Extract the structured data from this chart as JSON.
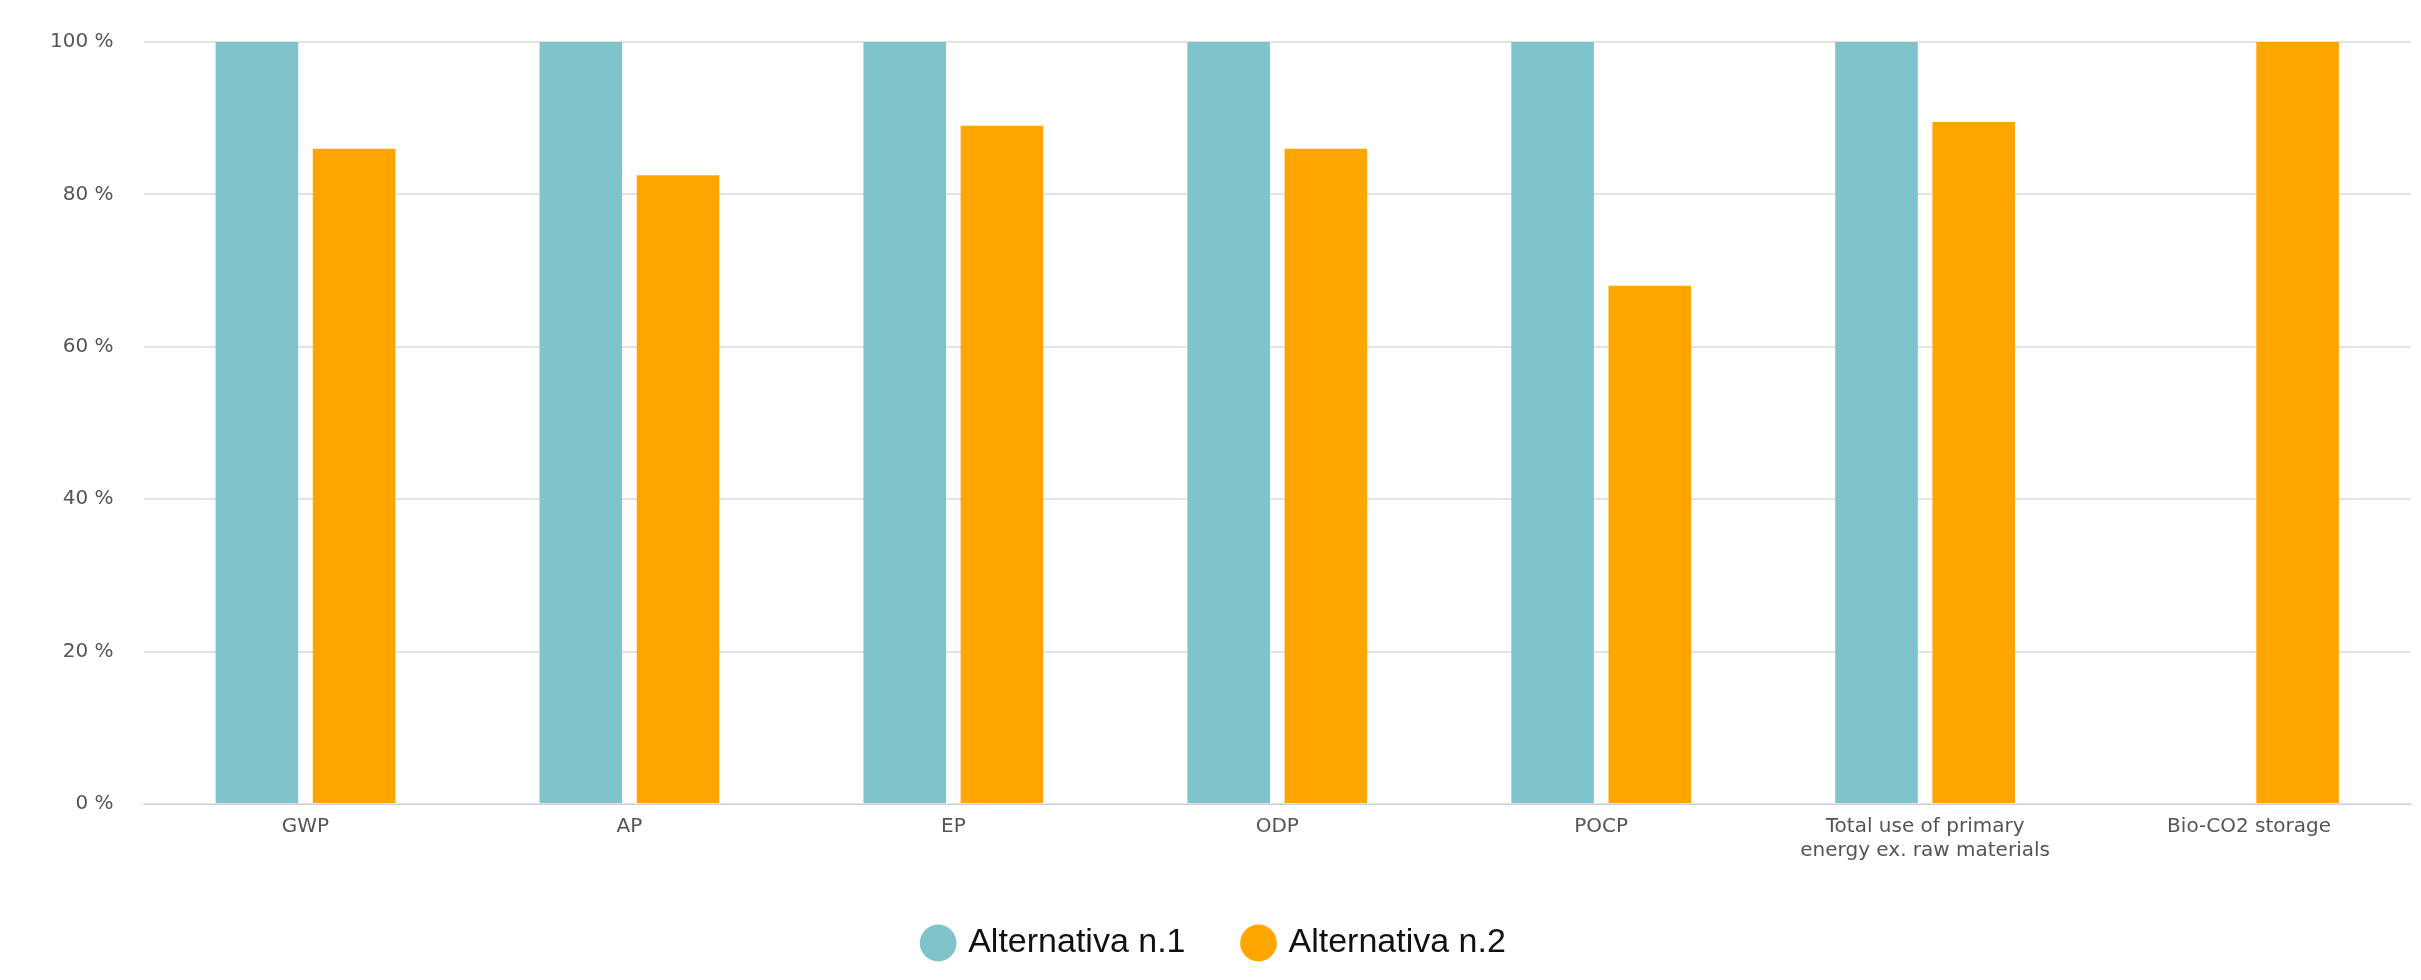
{
  "chart_data": {
    "type": "bar",
    "categories": [
      "GWP",
      "AP",
      "EP",
      "ODP",
      "POCP",
      "Total use of primary energy ex. raw materials",
      "Bio-CO2 storage"
    ],
    "series": [
      {
        "name": "Alternativa n.1",
        "color": "#7fc4cb",
        "values": [
          100,
          100,
          100,
          100,
          100,
          100,
          null
        ]
      },
      {
        "name": "Alternativa n.2",
        "color": "#ffa500",
        "values": [
          86,
          82.5,
          89,
          86,
          68,
          89.5,
          100
        ]
      }
    ],
    "ylim": [
      0,
      100
    ],
    "yticks": [
      {
        "value": 0,
        "label": "0 %"
      },
      {
        "value": 20,
        "label": "20 %"
      },
      {
        "value": 40,
        "label": "40 %"
      },
      {
        "value": 60,
        "label": "60 %"
      },
      {
        "value": 80,
        "label": "80 %"
      },
      {
        "value": 100,
        "label": "100 %"
      }
    ],
    "grid": "y",
    "legend": "bottom"
  }
}
